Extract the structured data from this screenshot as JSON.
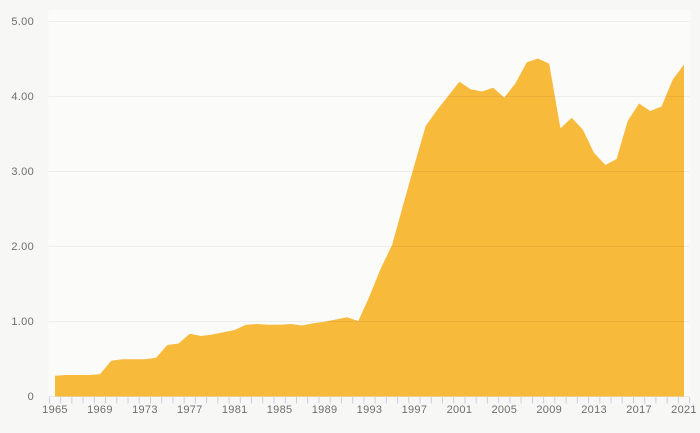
{
  "colors": {
    "page_background": "#f7f7f6",
    "plot_background": "#fbfbfa",
    "area_fill": "#f7ba3b",
    "gridline": "rgba(0,0,0,0.055)",
    "axis_tick": "#c7d0e2",
    "axis_label": "#6e6e6e"
  },
  "chart_data": {
    "type": "area",
    "grid": true,
    "legend": "none",
    "ylim": [
      0,
      5
    ],
    "x_range": [
      1965,
      2021
    ],
    "yticks": [
      {
        "v": 0,
        "label": "0"
      },
      {
        "v": 1,
        "label": "1.00"
      },
      {
        "v": 2,
        "label": "2.00"
      },
      {
        "v": 3,
        "label": "3.00"
      },
      {
        "v": 4,
        "label": "4.00"
      },
      {
        "v": 5,
        "label": "5.00"
      }
    ],
    "xtick_label_years": [
      1965,
      1969,
      1973,
      1977,
      1981,
      1985,
      1989,
      1993,
      1997,
      2001,
      2005,
      2009,
      2013,
      2017,
      2021
    ],
    "years": [
      1965,
      1966,
      1967,
      1968,
      1969,
      1970,
      1971,
      1972,
      1973,
      1974,
      1975,
      1976,
      1977,
      1978,
      1979,
      1980,
      1981,
      1982,
      1983,
      1984,
      1985,
      1986,
      1987,
      1988,
      1989,
      1990,
      1991,
      1992,
      1993,
      1994,
      1995,
      1996,
      1997,
      1998,
      1999,
      2000,
      2001,
      2002,
      2003,
      2004,
      2005,
      2006,
      2007,
      2008,
      2009,
      2010,
      2011,
      2012,
      2013,
      2014,
      2015,
      2016,
      2017,
      2018,
      2019,
      2020,
      2021
    ],
    "values": [
      0.27,
      0.28,
      0.28,
      0.28,
      0.29,
      0.47,
      0.49,
      0.49,
      0.49,
      0.51,
      0.68,
      0.7,
      0.83,
      0.8,
      0.82,
      0.85,
      0.88,
      0.95,
      0.96,
      0.95,
      0.95,
      0.96,
      0.94,
      0.97,
      0.99,
      1.02,
      1.05,
      1.0,
      1.33,
      1.7,
      2.01,
      2.55,
      3.08,
      3.6,
      3.81,
      4.0,
      4.19,
      4.09,
      4.06,
      4.11,
      3.98,
      4.17,
      4.45,
      4.5,
      4.43,
      3.57,
      3.71,
      3.55,
      3.24,
      3.08,
      3.16,
      3.67,
      3.9,
      3.8,
      3.86,
      4.22,
      4.42
    ]
  }
}
